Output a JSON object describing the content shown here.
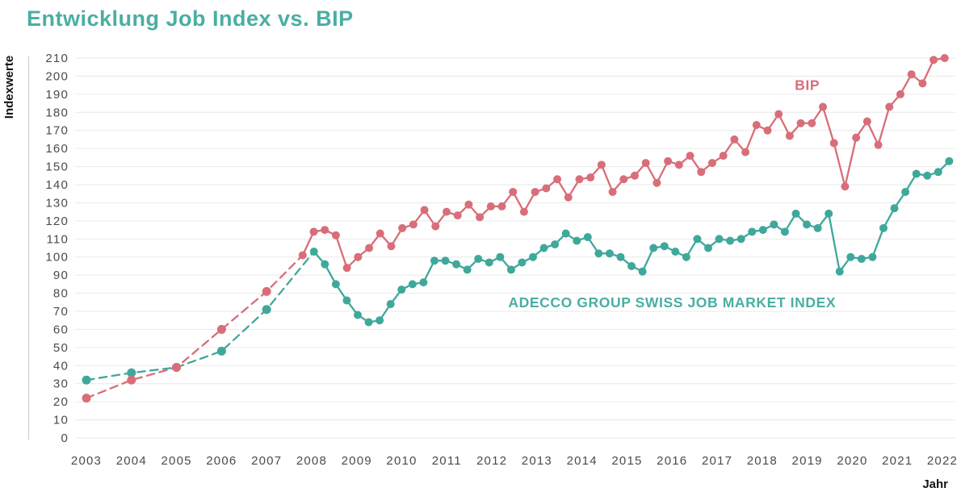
{
  "page": {
    "title": "Entwicklung Job Index vs. BIP"
  },
  "colors": {
    "teal_text": "#4aaea3",
    "teal_line": "#3fa89b",
    "pink_line": "#d86e79",
    "grid_color": "#e9e9e9",
    "vline_color": "#c9c9c9",
    "tick_text": "#4b4b4f",
    "axis_title_text": "#141414"
  },
  "chart_data": {
    "type": "line",
    "title": "Entwicklung Job Index vs. BIP",
    "xlabel": "Jahr",
    "ylabel": "Indexwerte",
    "ylim": [
      0,
      210
    ],
    "xlim": [
      2003,
      2022
    ],
    "grid": "horizontal gridlines every 10 units, no vertical grid",
    "legend": "inline text labels next to lines",
    "y_ticks": [
      0,
      10,
      20,
      30,
      40,
      50,
      60,
      70,
      80,
      90,
      100,
      110,
      120,
      130,
      140,
      150,
      160,
      170,
      180,
      190,
      200,
      210
    ],
    "x_ticks": [
      2003,
      2004,
      2005,
      2006,
      2007,
      2008,
      2009,
      2010,
      2011,
      2012,
      2013,
      2014,
      2015,
      2016,
      2017,
      2018,
      2019,
      2020,
      2021,
      2022
    ],
    "series": [
      {
        "name": "ADECCO GROUP SWISS JOB MARKET INDEX",
        "color": "#3fa89b",
        "style": "dashed annual line 2003-2007, solid quarterly line with dots from 2008",
        "annual": {
          "years": [
            2003,
            2004,
            2005,
            2006,
            2007
          ],
          "values": [
            32,
            36,
            39,
            48,
            71
          ]
        },
        "quarterly": {
          "t_start": 2008.05,
          "t_end": 2022.15,
          "values": [
            103,
            96,
            85,
            76,
            68,
            64,
            65,
            74,
            82,
            85,
            86,
            98,
            98,
            96,
            93,
            99,
            97,
            100,
            93,
            97,
            100,
            105,
            107,
            113,
            109,
            111,
            102,
            102,
            100,
            95,
            92,
            105,
            106,
            103,
            100,
            110,
            105,
            110,
            109,
            110,
            114,
            115,
            118,
            114,
            124,
            118,
            116,
            124,
            92,
            100,
            99,
            100,
            116,
            127,
            136,
            146,
            145,
            147,
            153
          ]
        }
      },
      {
        "name": "BIP",
        "color": "#d86e79",
        "style": "dashed annual line 2003-2007, solid quarterly line with dots from 2008",
        "annual": {
          "years": [
            2003,
            2004,
            2005,
            2006,
            2007
          ],
          "values": [
            22,
            32,
            39,
            60,
            81
          ]
        },
        "quarterly": {
          "t_start": 2007.8,
          "t_end": 2022.05,
          "values": [
            101,
            114,
            115,
            112,
            94,
            100,
            105,
            113,
            106,
            116,
            118,
            126,
            117,
            125,
            123,
            129,
            122,
            128,
            128,
            136,
            125,
            136,
            138,
            143,
            133,
            143,
            144,
            151,
            136,
            143,
            145,
            152,
            141,
            153,
            151,
            156,
            147,
            152,
            156,
            165,
            158,
            173,
            170,
            179,
            167,
            174,
            174,
            183,
            163,
            139,
            166,
            175,
            162,
            183,
            190,
            201,
            196,
            209,
            210
          ]
        }
      }
    ],
    "annotations": [
      {
        "text": "BIP",
        "x": 2019.0,
        "y": 195,
        "color": "#d86e79"
      },
      {
        "text": "ADECCO GROUP SWISS JOB MARKET INDEX",
        "x": 2016.0,
        "y": 75,
        "color": "#4aaea3"
      }
    ]
  }
}
